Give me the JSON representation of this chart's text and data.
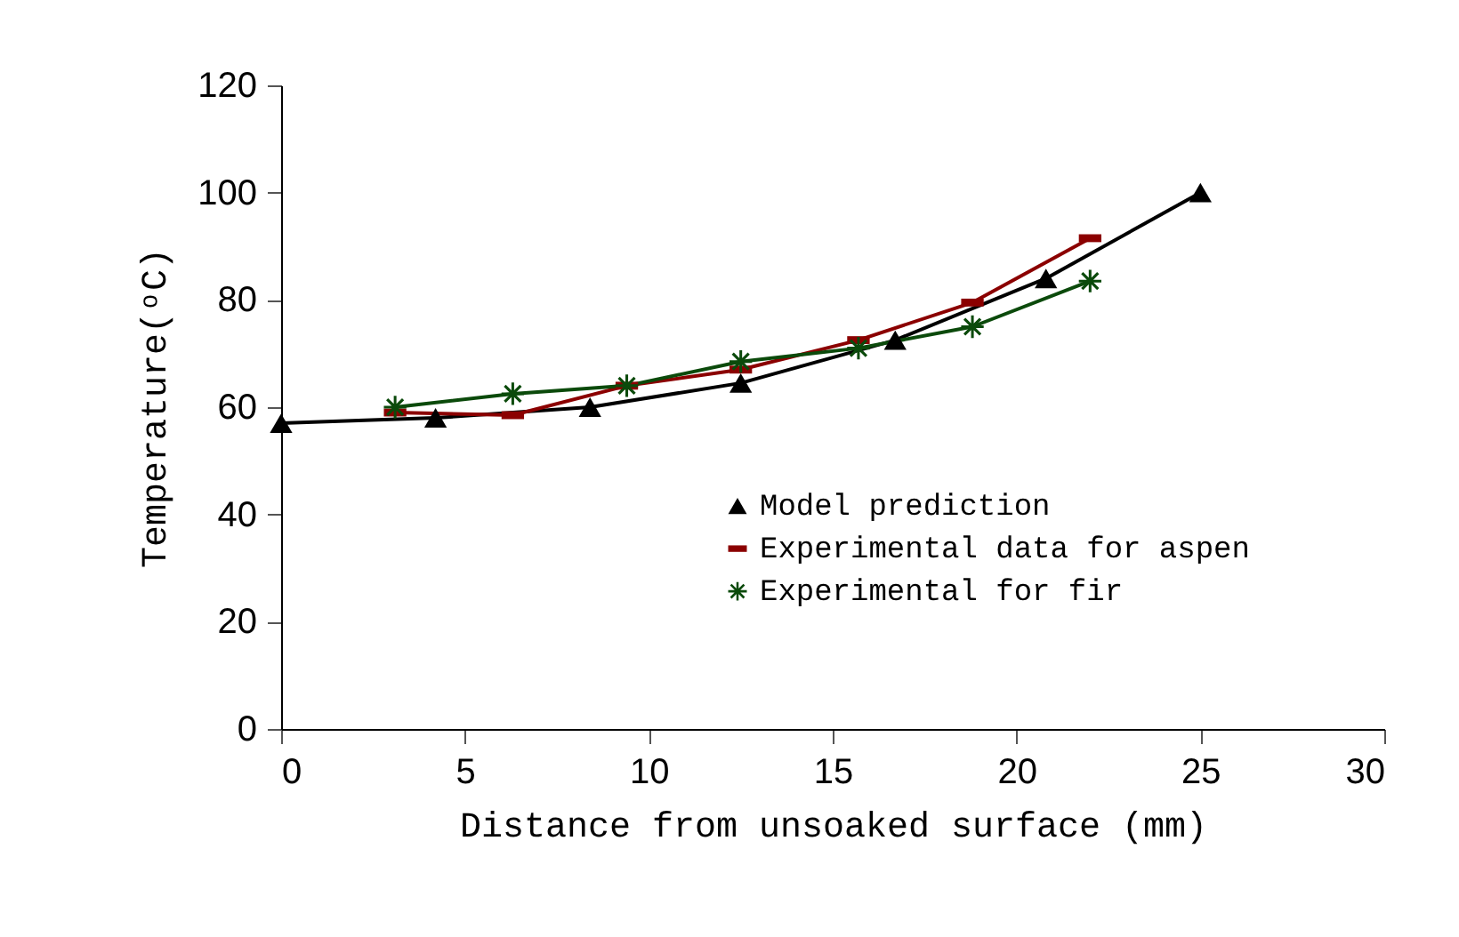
{
  "chart_data": {
    "type": "line",
    "xlabel": "Distance from unsoaked surface (mm)",
    "ylabel": "Temperature(ᵒC)",
    "xlim": [
      0,
      30
    ],
    "xticks": [
      0,
      5,
      10,
      15,
      20,
      25,
      30
    ],
    "ylim": [
      0,
      120
    ],
    "yticks": [
      0,
      20,
      40,
      60,
      80,
      100,
      120
    ],
    "grid": false,
    "legend": "right",
    "series": [
      {
        "name": "Model prediction",
        "color": "#000000",
        "marker": "triangle",
        "x": [
          0,
          4.2,
          8.4,
          12.5,
          16.7,
          20.8,
          25
        ],
        "values": [
          57,
          58,
          60,
          64.5,
          72.5,
          84,
          100
        ]
      },
      {
        "name": "Experimental data for aspen",
        "color": "#8b0000",
        "marker": "square",
        "x": [
          3.1,
          6.3,
          9.4,
          12.5,
          15.7,
          18.8,
          22
        ],
        "values": [
          59,
          58.5,
          64,
          67,
          72.5,
          79.5,
          91.5
        ]
      },
      {
        "name": "Experimental for fir",
        "color": "#0b4a0b",
        "marker": "star",
        "x": [
          3.1,
          6.3,
          9.4,
          12.5,
          15.7,
          18.8,
          22
        ],
        "values": [
          60,
          62.5,
          64,
          68.5,
          71,
          75,
          83.5
        ]
      }
    ]
  }
}
